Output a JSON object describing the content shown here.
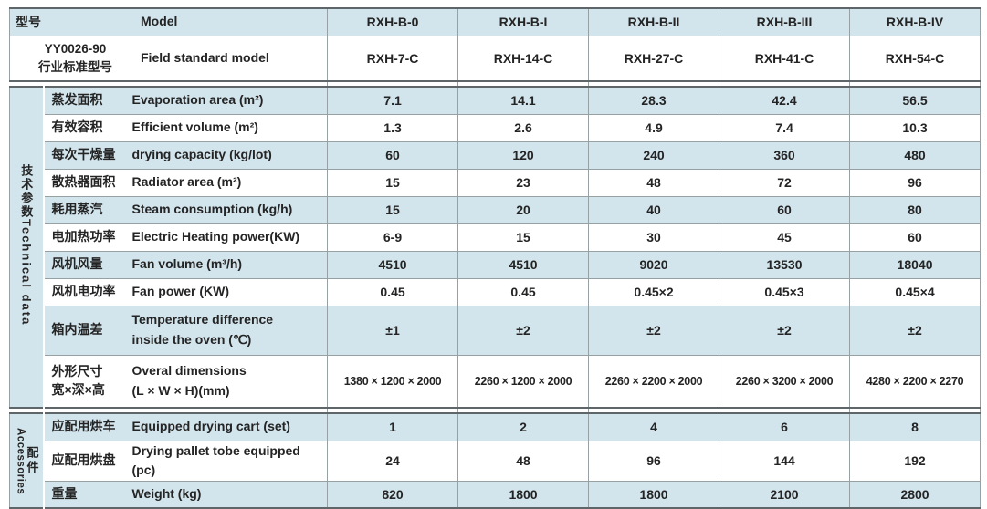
{
  "colors": {
    "row_blue": "#d2e4ec",
    "row_white": "#ffffff",
    "border_light": "#97a1a4",
    "border_dark": "#5f6669",
    "text": "#242424"
  },
  "header": {
    "row1": {
      "zh": "型号",
      "en": "Model",
      "models": [
        "RXH-B-0",
        "RXH-B-I",
        "RXH-B-II",
        "RXH-B-III",
        "RXH-B-IV"
      ]
    },
    "row2": {
      "zh": "YY0026-90\n行业标准型号",
      "en": "Field standard model",
      "models": [
        "RXH-7-C",
        "RXH-14-C",
        "RXH-27-C",
        "RXH-41-C",
        "RXH-54-C"
      ]
    }
  },
  "sections": {
    "technical": {
      "label_zh": "技术参数",
      "label_en": "Technical data",
      "rows": [
        {
          "zh": "蒸发面积",
          "en": "Evaporation area (m²)",
          "values": [
            "7.1",
            "14.1",
            "28.3",
            "42.4",
            "56.5"
          ]
        },
        {
          "zh": "有效容积",
          "en": "Efficient volume (m²)",
          "values": [
            "1.3",
            "2.6",
            "4.9",
            "7.4",
            "10.3"
          ]
        },
        {
          "zh": "每次干燥量",
          "en": "drying capacity (kg/lot)",
          "values": [
            "60",
            "120",
            "240",
            "360",
            "480"
          ]
        },
        {
          "zh": "散热器面积",
          "en": "Radiator area (m²)",
          "values": [
            "15",
            "23",
            "48",
            "72",
            "96"
          ]
        },
        {
          "zh": "耗用蒸汽",
          "en": "Steam consumption (kg/h)",
          "values": [
            "15",
            "20",
            "40",
            "60",
            "80"
          ]
        },
        {
          "zh": "电加热功率",
          "en": "Electric Heating power(KW)",
          "values": [
            "6-9",
            "15",
            "30",
            "45",
            "60"
          ]
        },
        {
          "zh": "风机风量",
          "en": "Fan volume (m³/h)",
          "values": [
            "4510",
            "4510",
            "9020",
            "13530",
            "18040"
          ]
        },
        {
          "zh": "风机电功率",
          "en": "Fan power (KW)",
          "values": [
            "0.45",
            "0.45",
            "0.45×2",
            "0.45×3",
            "0.45×4"
          ]
        },
        {
          "zh": "箱内温差",
          "en": "Temperature difference\ninside the oven (℃)",
          "values": [
            "±1",
            "±2",
            "±2",
            "±2",
            "±2"
          ]
        },
        {
          "zh": "外形尺寸\n宽×深×高",
          "en": "Overal dimensions\n(L × W × H)(mm)",
          "values": [
            "1380 × 1200 × 2000",
            "2260 × 1200 × 2000",
            "2260 × 2200 × 2000",
            "2260 × 3200 × 2000",
            "4280 × 2200 × 2270"
          ]
        }
      ]
    },
    "accessories": {
      "label_zh": "配件",
      "label_en": "Accessories",
      "rows": [
        {
          "zh": "应配用烘车",
          "en": "Equipped drying cart (set)",
          "values": [
            "1",
            "2",
            "4",
            "6",
            "8"
          ]
        },
        {
          "zh": "应配用烘盘",
          "en": "Drying pallet tobe equipped (pc)",
          "values": [
            "24",
            "48",
            "96",
            "144",
            "192"
          ]
        },
        {
          "zh": "重量",
          "en": "Weight (kg)",
          "values": [
            "820",
            "1800",
            "1800",
            "2100",
            "2800"
          ]
        }
      ]
    }
  }
}
